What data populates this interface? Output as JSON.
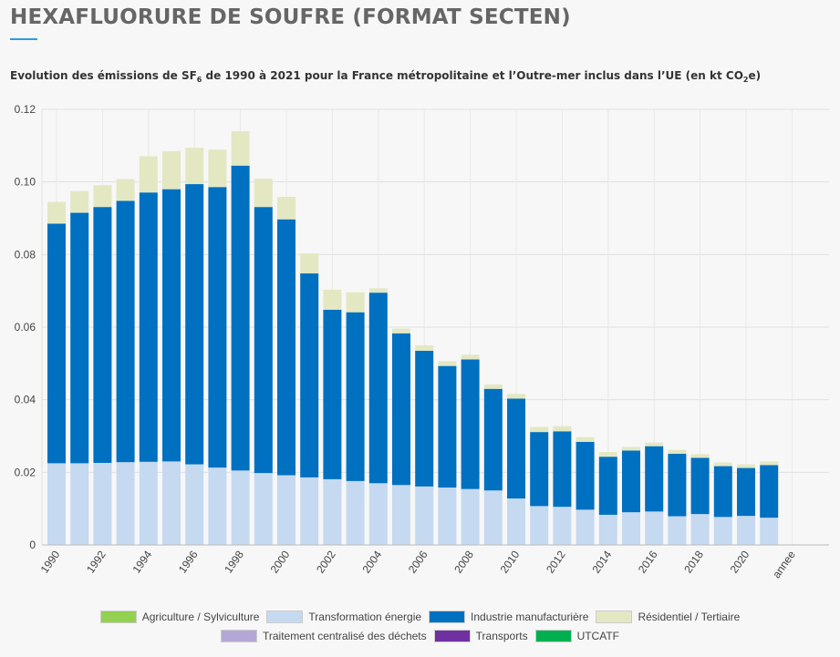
{
  "header": {
    "title": "HEXAFLUORURE DE SOUFRE (FORMAT SECTEN)",
    "subtitle_pre": "Evolution des émissions de SF",
    "subtitle_sub1": "6",
    "subtitle_mid": " de 1990 à 2021 pour la France métropolitaine et l’Outre-mer inclus dans l’UE (en kt CO",
    "subtitle_sub2": "2",
    "subtitle_post": "e)"
  },
  "colors": {
    "agriculture": "#93d150",
    "transformation": "#c5d9f1",
    "industrie": "#0070c0",
    "residentiel": "#e3e8c2",
    "dechets": "#b4a7d6",
    "transports": "#7030a0",
    "utcatf": "#00b050"
  },
  "legend": {
    "row1": [
      {
        "label": "Agriculture / Sylviculture",
        "color": "#93d150"
      },
      {
        "label": "Transformation énergie",
        "color": "#c5d9f1"
      },
      {
        "label": "Industrie manufacturière",
        "color": "#0070c0"
      },
      {
        "label": "Résidentiel / Tertiaire",
        "color": "#e3e8c2"
      }
    ],
    "row2": [
      {
        "label": "Traitement centralisé des déchets",
        "color": "#b4a7d6"
      },
      {
        "label": "Transports",
        "color": "#7030a0"
      },
      {
        "label": "UTCATF",
        "color": "#00b050"
      }
    ]
  },
  "chart_data": {
    "type": "bar",
    "stacked": true,
    "categories": [
      "1990",
      "1991",
      "1992",
      "1993",
      "1994",
      "1995",
      "1996",
      "1997",
      "1998",
      "1999",
      "2000",
      "2001",
      "2002",
      "2003",
      "2004",
      "2005",
      "2006",
      "2007",
      "2008",
      "2009",
      "2010",
      "2011",
      "2012",
      "2013",
      "2014",
      "2015",
      "2016",
      "2017",
      "2018",
      "2019",
      "2020",
      "2021"
    ],
    "x_tick_labels": [
      "1990",
      "1992",
      "1994",
      "1996",
      "1998",
      "2000",
      "2002",
      "2004",
      "2006",
      "2008",
      "2010",
      "2012",
      "2014",
      "2016",
      "2018",
      "2020",
      "annee"
    ],
    "ylim": [
      0,
      0.12
    ],
    "y_ticks": [
      "0",
      "0.02",
      "0.04",
      "0.06",
      "0.08",
      "0.10",
      "0.12"
    ],
    "grid": true,
    "legend_position": "bottom",
    "series": [
      {
        "name": "Transformation énergie",
        "color": "#c5d9f1",
        "values": [
          0.0225,
          0.0225,
          0.0226,
          0.0228,
          0.0229,
          0.023,
          0.0222,
          0.0213,
          0.0205,
          0.0198,
          0.0192,
          0.0186,
          0.0181,
          0.0176,
          0.017,
          0.0165,
          0.0161,
          0.0158,
          0.0154,
          0.015,
          0.0128,
          0.0107,
          0.0105,
          0.0097,
          0.0083,
          0.009,
          0.0092,
          0.0079,
          0.0085,
          0.0077,
          0.008,
          0.0075
        ]
      },
      {
        "name": "Industrie manufacturière",
        "color": "#0070c0",
        "values": [
          0.066,
          0.069,
          0.0705,
          0.072,
          0.0742,
          0.075,
          0.0772,
          0.0773,
          0.084,
          0.0733,
          0.0705,
          0.0562,
          0.0467,
          0.0465,
          0.0525,
          0.0418,
          0.0374,
          0.0335,
          0.0357,
          0.028,
          0.0275,
          0.0204,
          0.0208,
          0.0187,
          0.016,
          0.017,
          0.018,
          0.0172,
          0.0155,
          0.014,
          0.0132,
          0.0145
        ]
      },
      {
        "name": "Résidentiel / Tertiaire",
        "color": "#e3e8c2",
        "values": [
          0.006,
          0.006,
          0.006,
          0.006,
          0.01,
          0.0105,
          0.01,
          0.0103,
          0.0095,
          0.0078,
          0.0062,
          0.0055,
          0.0055,
          0.0055,
          0.0012,
          0.0013,
          0.0015,
          0.0013,
          0.0013,
          0.0012,
          0.0013,
          0.0014,
          0.0014,
          0.0013,
          0.0013,
          0.001,
          0.001,
          0.0011,
          0.001,
          0.001,
          0.001,
          0.001
        ]
      }
    ]
  }
}
